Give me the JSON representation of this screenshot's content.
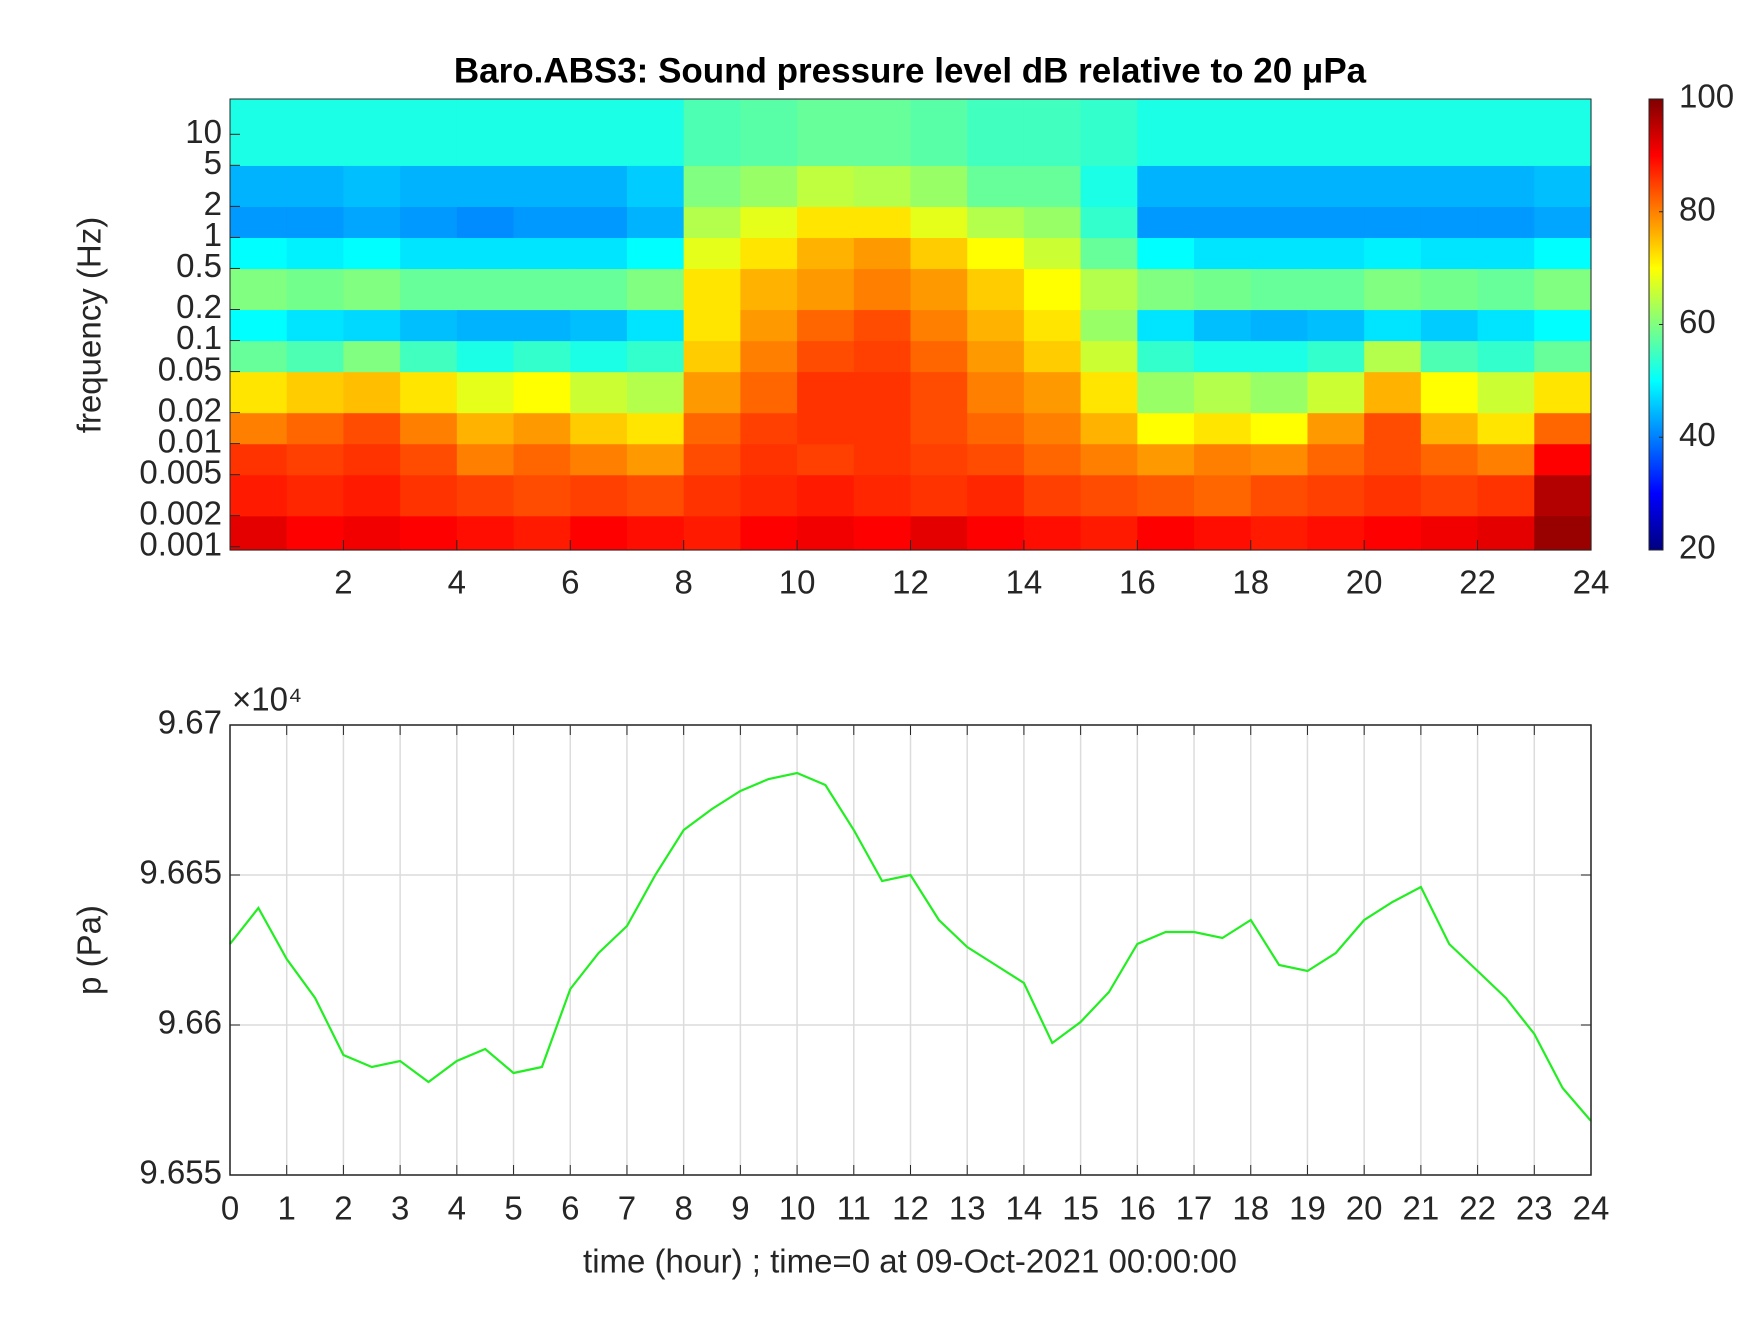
{
  "chart_data": [
    {
      "type": "heatmap",
      "title": "Baro.ABS3: Sound pressure level dB relative to 20 μPa",
      "ylabel": "frequency (Hz)",
      "x_bins": [
        0,
        1,
        2,
        3,
        4,
        5,
        6,
        7,
        8,
        9,
        10,
        11,
        12,
        13,
        14,
        15,
        16,
        17,
        18,
        19,
        20,
        21,
        22,
        23,
        24
      ],
      "y_bins": [
        0.00093,
        0.002,
        0.005,
        0.01,
        0.02,
        0.05,
        0.1,
        0.2,
        0.5,
        1,
        2,
        5,
        22
      ],
      "values": [
        [
          92,
          90,
          91,
          90,
          89,
          88,
          90,
          89,
          88,
          90,
          91,
          90,
          92,
          90,
          89,
          88,
          90,
          89,
          88,
          89,
          90,
          91,
          92,
          98
        ],
        [
          88,
          87,
          88,
          86,
          85,
          84,
          85,
          84,
          86,
          87,
          88,
          87,
          86,
          87,
          85,
          84,
          83,
          82,
          84,
          85,
          86,
          85,
          86,
          96
        ],
        [
          86,
          85,
          86,
          84,
          80,
          82,
          80,
          78,
          84,
          86,
          85,
          86,
          85,
          84,
          82,
          80,
          78,
          80,
          79,
          82,
          84,
          82,
          80,
          90
        ],
        [
          80,
          82,
          84,
          80,
          76,
          78,
          74,
          72,
          82,
          85,
          86,
          86,
          84,
          82,
          80,
          76,
          70,
          72,
          70,
          78,
          84,
          76,
          72,
          82
        ],
        [
          72,
          74,
          75,
          72,
          68,
          70,
          66,
          64,
          78,
          82,
          86,
          86,
          84,
          80,
          78,
          72,
          62,
          64,
          62,
          66,
          76,
          70,
          66,
          72
        ],
        [
          58,
          56,
          60,
          55,
          52,
          54,
          52,
          54,
          74,
          80,
          84,
          85,
          82,
          78,
          74,
          66,
          54,
          52,
          52,
          54,
          64,
          56,
          54,
          58
        ],
        [
          50,
          48,
          47,
          45,
          44,
          44,
          45,
          48,
          72,
          78,
          82,
          84,
          80,
          76,
          72,
          62,
          48,
          45,
          44,
          45,
          48,
          46,
          48,
          50
        ],
        [
          60,
          59,
          60,
          58,
          58,
          58,
          58,
          60,
          72,
          76,
          78,
          80,
          78,
          74,
          70,
          64,
          60,
          59,
          58,
          58,
          60,
          59,
          58,
          60
        ],
        [
          50,
          49,
          50,
          48,
          48,
          48,
          48,
          50,
          68,
          72,
          76,
          78,
          74,
          70,
          66,
          58,
          50,
          48,
          48,
          48,
          49,
          48,
          48,
          50
        ],
        [
          42,
          42,
          43,
          42,
          41,
          42,
          42,
          44,
          64,
          68,
          72,
          72,
          68,
          64,
          62,
          54,
          42,
          42,
          42,
          42,
          42,
          42,
          42,
          43
        ],
        [
          44,
          44,
          45,
          44,
          44,
          44,
          44,
          46,
          60,
          62,
          65,
          64,
          62,
          58,
          58,
          52,
          44,
          44,
          44,
          44,
          44,
          44,
          44,
          45
        ],
        [
          52,
          52,
          52,
          52,
          52,
          52,
          52,
          52,
          56,
          57,
          58,
          58,
          57,
          55,
          55,
          54,
          52,
          52,
          52,
          52,
          52,
          52,
          52,
          52
        ]
      ],
      "xlim": [
        0,
        24
      ],
      "xticks": [
        2,
        4,
        6,
        8,
        10,
        12,
        14,
        16,
        18,
        20,
        22,
        24
      ],
      "ylim": [
        0.00093,
        22
      ],
      "ylog": true,
      "yticks": [
        0.001,
        0.002,
        0.005,
        0.01,
        0.02,
        0.05,
        0.1,
        0.2,
        0.5,
        1,
        2,
        5,
        10
      ],
      "colormap": "jet",
      "clim": [
        20,
        100
      ],
      "cticks": [
        20,
        40,
        60,
        80,
        100
      ]
    },
    {
      "type": "line",
      "ylabel": "p (Pa)",
      "xlabel": "time (hour) ; time=0 at 09-Oct-2021 00:00:00",
      "exponent_label": "×10⁴",
      "x": [
        0,
        0.5,
        1,
        1.5,
        2,
        2.5,
        3,
        3.5,
        4,
        4.5,
        5,
        5.5,
        6,
        6.5,
        7,
        7.5,
        8,
        8.5,
        9,
        9.5,
        10,
        10.5,
        11,
        11.5,
        12,
        12.5,
        13,
        13.5,
        14,
        14.5,
        15,
        15.5,
        16,
        16.5,
        17,
        17.5,
        18,
        18.5,
        19,
        19.5,
        20,
        20.5,
        21,
        21.5,
        22,
        22.5,
        23,
        23.5,
        24
      ],
      "series": [
        {
          "color": "#22ee22",
          "values": [
            96627,
            96639,
            96622,
            96609,
            96590,
            96586,
            96588,
            96581,
            96588,
            96592,
            96584,
            96586,
            96612,
            96624,
            96633,
            96650,
            96665,
            96672,
            96678,
            96682,
            96684,
            96680,
            96665,
            96648,
            96650,
            96635,
            96626,
            96620,
            96614,
            96594,
            96601,
            96611,
            96627,
            96631,
            96631,
            96629,
            96635,
            96620,
            96618,
            96624,
            96635,
            96641,
            96646,
            96627,
            96618,
            96609,
            96597,
            96579,
            96568
          ]
        }
      ],
      "xlim": [
        0,
        24
      ],
      "xticks": [
        0,
        1,
        2,
        3,
        4,
        5,
        6,
        7,
        8,
        9,
        10,
        11,
        12,
        13,
        14,
        15,
        16,
        17,
        18,
        19,
        20,
        21,
        22,
        23,
        24
      ],
      "ylim": [
        96550,
        96700
      ],
      "yticks": [
        {
          "value": 96550,
          "label": "9.655"
        },
        {
          "value": 96600,
          "label": "9.66"
        },
        {
          "value": 96650,
          "label": "9.665"
        },
        {
          "value": 96700,
          "label": "9.67"
        }
      ],
      "grid": true
    }
  ]
}
